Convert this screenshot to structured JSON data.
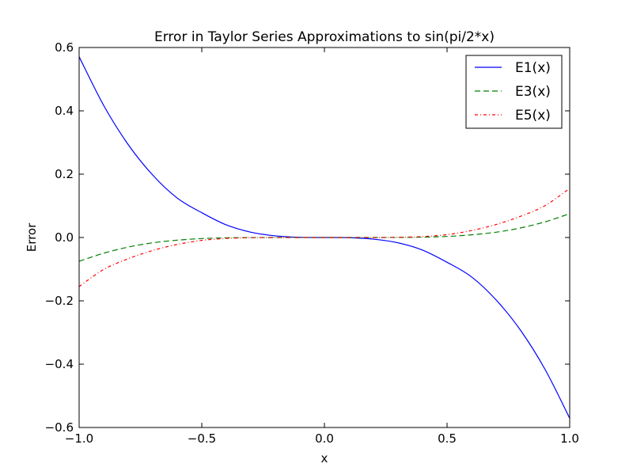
{
  "chart_data": {
    "type": "line",
    "title": "Error in Taylor Series Approximations to sin(pi/2*x)",
    "xlabel": "x",
    "ylabel": "Error",
    "xlim": [
      -1.0,
      1.0
    ],
    "ylim": [
      -0.6,
      0.6
    ],
    "xticks": [
      -1.0,
      -0.5,
      0.0,
      0.5,
      1.0
    ],
    "xtick_labels": [
      "−1.0",
      "−0.5",
      "0.0",
      "0.5",
      "1.0"
    ],
    "yticks": [
      -0.6,
      -0.4,
      -0.2,
      0.0,
      0.2,
      0.4,
      0.6
    ],
    "ytick_labels": [
      "−0.6",
      "−0.4",
      "−0.2",
      "0.0",
      "0.2",
      "0.4",
      "0.6"
    ],
    "grid": false,
    "legend_position": "top-right",
    "x": [
      -1.0,
      -0.9,
      -0.8,
      -0.7,
      -0.6,
      -0.5,
      -0.4,
      -0.3,
      -0.2,
      -0.1,
      0.0,
      0.1,
      0.2,
      0.3,
      0.4,
      0.5,
      0.6,
      0.7,
      0.8,
      0.9,
      1.0
    ],
    "series": [
      {
        "name": "E1(x)",
        "color": "#0000ff",
        "style": "solid",
        "values": [
          0.5708,
          0.4172,
          0.2935,
          0.1972,
          0.1245,
          0.0783,
          0.0398,
          0.0168,
          0.0052,
          0.0006,
          0.0,
          -0.0006,
          -0.0052,
          -0.0168,
          -0.0398,
          -0.0783,
          -0.1245,
          -0.1972,
          -0.2935,
          -0.4172,
          -0.5708
        ]
      },
      {
        "name": "E3(x)",
        "color": "#008000",
        "style": "dashed",
        "values": [
          -0.0752,
          -0.0496,
          -0.0303,
          -0.0167,
          -0.0085,
          -0.0033,
          -0.0011,
          -0.0003,
          0.0,
          0.0,
          0.0,
          0.0,
          0.0,
          0.0003,
          0.0011,
          0.0033,
          0.0085,
          0.0167,
          0.0303,
          0.0496,
          0.0752
        ]
      },
      {
        "name": "E5(x)",
        "color": "#ff0000",
        "style": "dashdot",
        "values": [
          -0.155,
          -0.101,
          -0.067,
          -0.041,
          -0.022,
          -0.009,
          -0.003,
          -0.0005,
          0.0,
          0.0,
          0.0,
          0.0,
          0.0,
          0.0005,
          0.003,
          0.009,
          0.022,
          0.041,
          0.067,
          0.101,
          0.155
        ]
      }
    ]
  }
}
